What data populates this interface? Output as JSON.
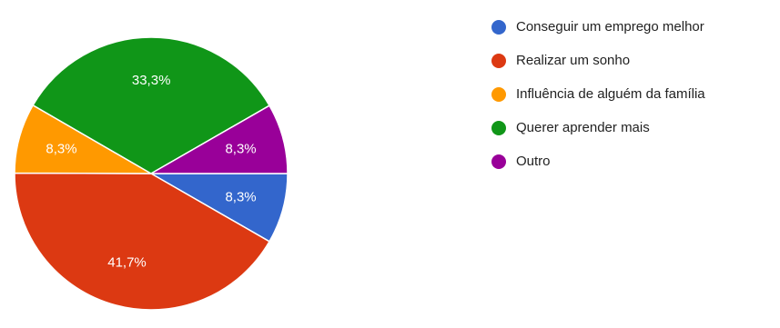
{
  "chart_data": {
    "type": "pie",
    "slices": [
      {
        "label": "Conseguir um emprego melhor",
        "value": 8.3,
        "display": "8,3%",
        "color": "#3366cc"
      },
      {
        "label": "Realizar um sonho",
        "value": 41.7,
        "display": "41,7%",
        "color": "#dc3912"
      },
      {
        "label": "Influência de alguém da família",
        "value": 8.3,
        "display": "8,3%",
        "color": "#ff9900"
      },
      {
        "label": "Querer aprender mais",
        "value": 33.3,
        "display": "33,3%",
        "color": "#109618"
      },
      {
        "label": "Outro",
        "value": 8.3,
        "display": "8,3%",
        "color": "#990099"
      }
    ],
    "start_angle_deg": 0,
    "direction": "clockwise",
    "legend_position": "right"
  }
}
